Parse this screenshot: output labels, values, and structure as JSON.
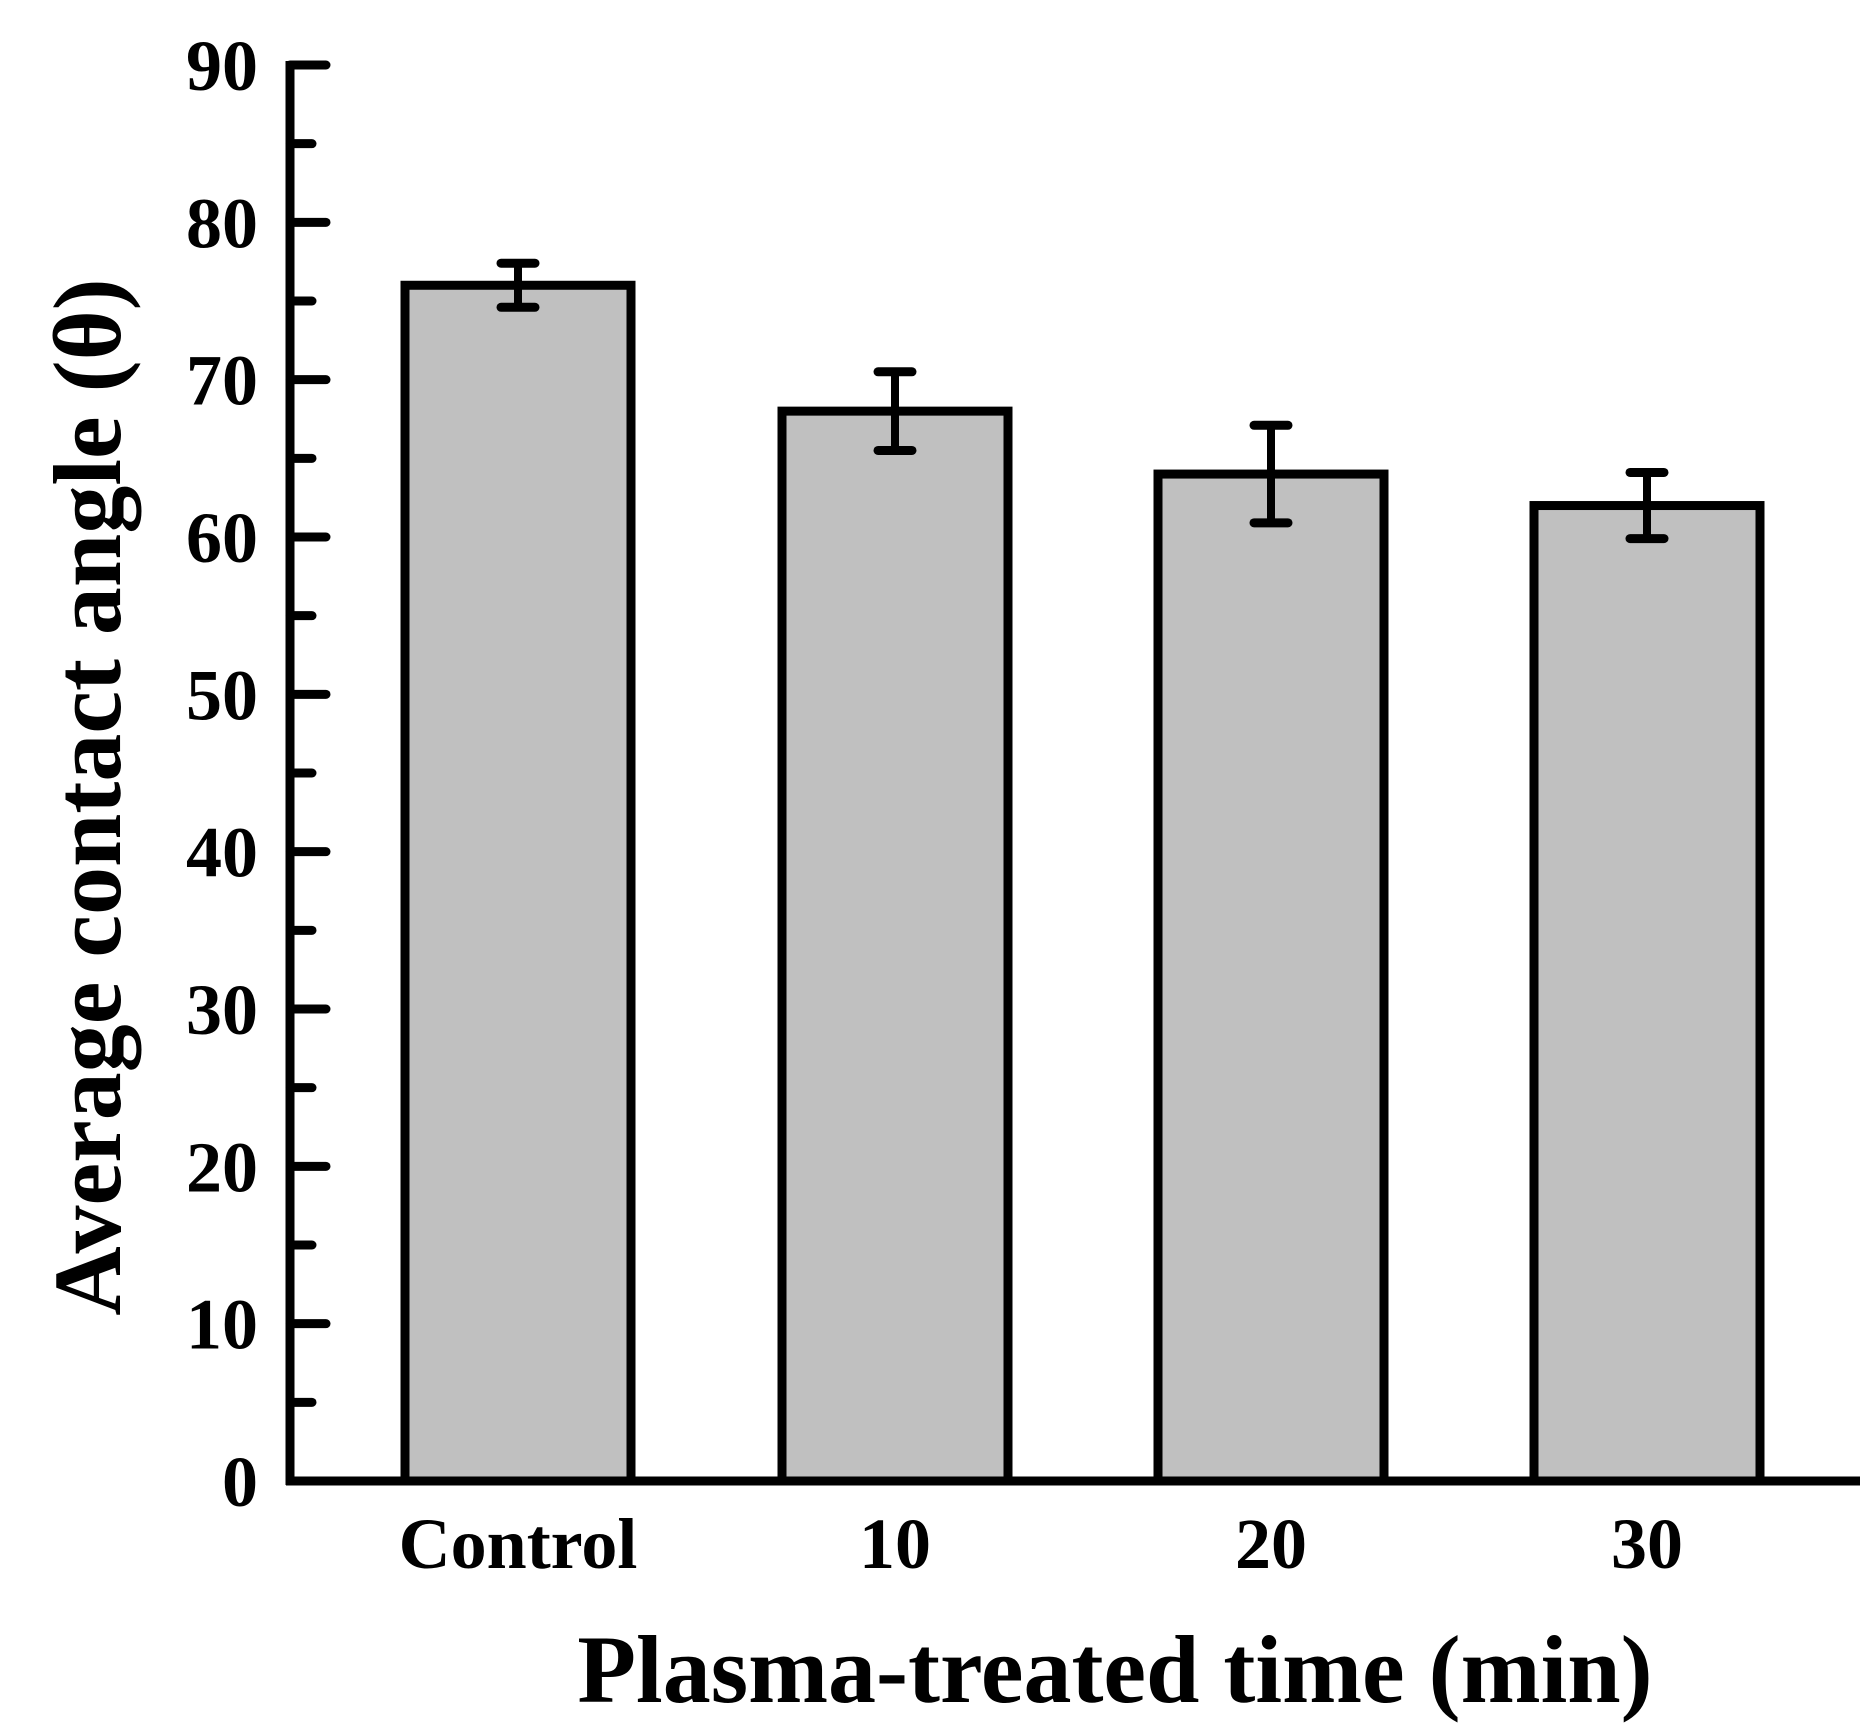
{
  "chart_data": {
    "type": "bar",
    "title": "",
    "xlabel": "Plasma-treated time (min)",
    "ylabel": "Average contact angle (θ)",
    "categories": [
      "Control",
      "10",
      "20",
      "30"
    ],
    "values": [
      76,
      68,
      64,
      62
    ],
    "errors": [
      1.4,
      2.5,
      3.1,
      2.1
    ],
    "ylim": [
      0,
      90
    ],
    "yticks": [
      0,
      10,
      20,
      30,
      40,
      50,
      60,
      70,
      80,
      90
    ],
    "yminor_step": 5,
    "grid": false,
    "legend": "none",
    "colors": {
      "bar_fill": "#c0c0c0",
      "bar_stroke": "#000000",
      "axis": "#000000",
      "error_bar": "#000000"
    }
  }
}
